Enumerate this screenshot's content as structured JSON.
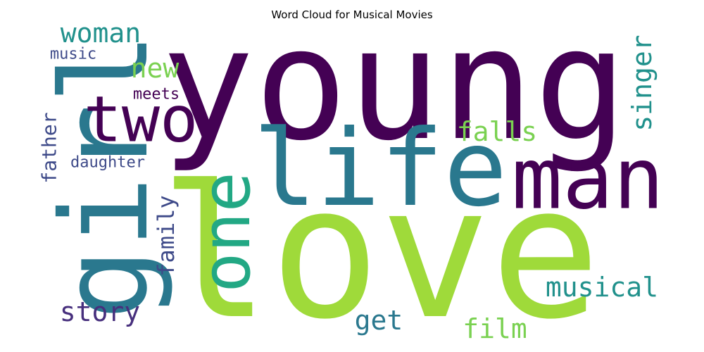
{
  "title": "Word Cloud for Musical Movies",
  "palette": {
    "dark_purple": "#440154",
    "indigo": "#472f7d",
    "blue": "#3e4a89",
    "teal_blue": "#2a788e",
    "teal": "#21918c",
    "green_teal": "#22a884",
    "green": "#44bf70",
    "lime": "#7ad151",
    "light_lime": "#9fda3a"
  },
  "words": [
    {
      "text": "love",
      "color": "#9fda3a"
    },
    {
      "text": "young",
      "color": "#440154"
    },
    {
      "text": "life",
      "color": "#2a788e"
    },
    {
      "text": "girl",
      "color": "#2a788e"
    },
    {
      "text": "man",
      "color": "#440154"
    },
    {
      "text": "two",
      "color": "#440154"
    },
    {
      "text": "one",
      "color": "#22a884"
    },
    {
      "text": "woman",
      "color": "#21918c"
    },
    {
      "text": "singer",
      "color": "#21918c"
    },
    {
      "text": "falls",
      "color": "#7ad151"
    },
    {
      "text": "new",
      "color": "#7ad151"
    },
    {
      "text": "story",
      "color": "#472f7d"
    },
    {
      "text": "musical",
      "color": "#21918c"
    },
    {
      "text": "family",
      "color": "#3e4a89"
    },
    {
      "text": "get",
      "color": "#2a788e"
    },
    {
      "text": "film",
      "color": "#7ad151"
    },
    {
      "text": "father",
      "color": "#3e4a89"
    },
    {
      "text": "meets",
      "color": "#440154"
    },
    {
      "text": "music",
      "color": "#3e4a89"
    },
    {
      "text": "daughter",
      "color": "#3e4a89"
    }
  ]
}
